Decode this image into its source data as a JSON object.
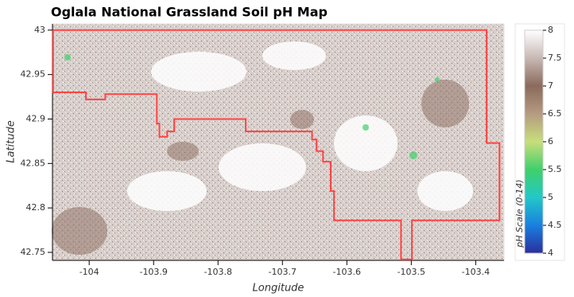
{
  "chart_data": {
    "type": "map",
    "title": "Oglala National Grassland Soil pH Map",
    "x_label": "Longitude",
    "y_label": "Latitude",
    "xlim": [
      -104.057,
      -103.356
    ],
    "ylim": [
      42.741,
      43.007
    ],
    "xticks": [
      -104,
      -103.9,
      -103.8,
      -103.7,
      -103.6,
      -103.5,
      -103.4
    ],
    "yticks": [
      42.75,
      42.8,
      42.85,
      42.9,
      42.95,
      43
    ],
    "boundary": {
      "color": "#ff4444",
      "x": [
        -104.056,
        -103.383,
        -103.383,
        -103.363,
        -103.363,
        -103.499,
        -103.499,
        -103.516,
        -103.516,
        -103.62,
        -103.62,
        -103.625,
        -103.625,
        -103.637,
        -103.637,
        -103.647,
        -103.647,
        -103.654,
        -103.654,
        -103.757,
        -103.757,
        -103.868,
        -103.868,
        -103.879,
        -103.879,
        -103.891,
        -103.891,
        -103.895,
        -103.895,
        -103.975,
        -103.975,
        -104.005,
        -104.005,
        -104.056,
        -104.056
      ],
      "y": [
        43.0,
        43.0,
        42.873,
        42.873,
        42.786,
        42.786,
        42.742,
        42.742,
        42.786,
        42.786,
        42.819,
        42.819,
        42.852,
        42.852,
        42.864,
        42.864,
        42.877,
        42.877,
        42.886,
        42.886,
        42.9,
        42.9,
        42.886,
        42.886,
        42.88,
        42.88,
        42.895,
        42.895,
        42.928,
        42.928,
        42.922,
        42.922,
        42.93,
        42.93,
        43.0
      ]
    },
    "colorbar": {
      "label": "pH Scale (0-14)",
      "lim": [
        4,
        8
      ],
      "ticks": [
        4,
        4.5,
        5,
        5.5,
        6,
        6.5,
        7,
        7.5,
        8
      ],
      "colors": [
        "#2a2e9c",
        "#1a7fe0",
        "#22c8c8",
        "#3fd06a",
        "#c8de7a",
        "#b59b80",
        "#8a6a5c",
        "#c8b8b4",
        "#ffffff"
      ]
    }
  }
}
